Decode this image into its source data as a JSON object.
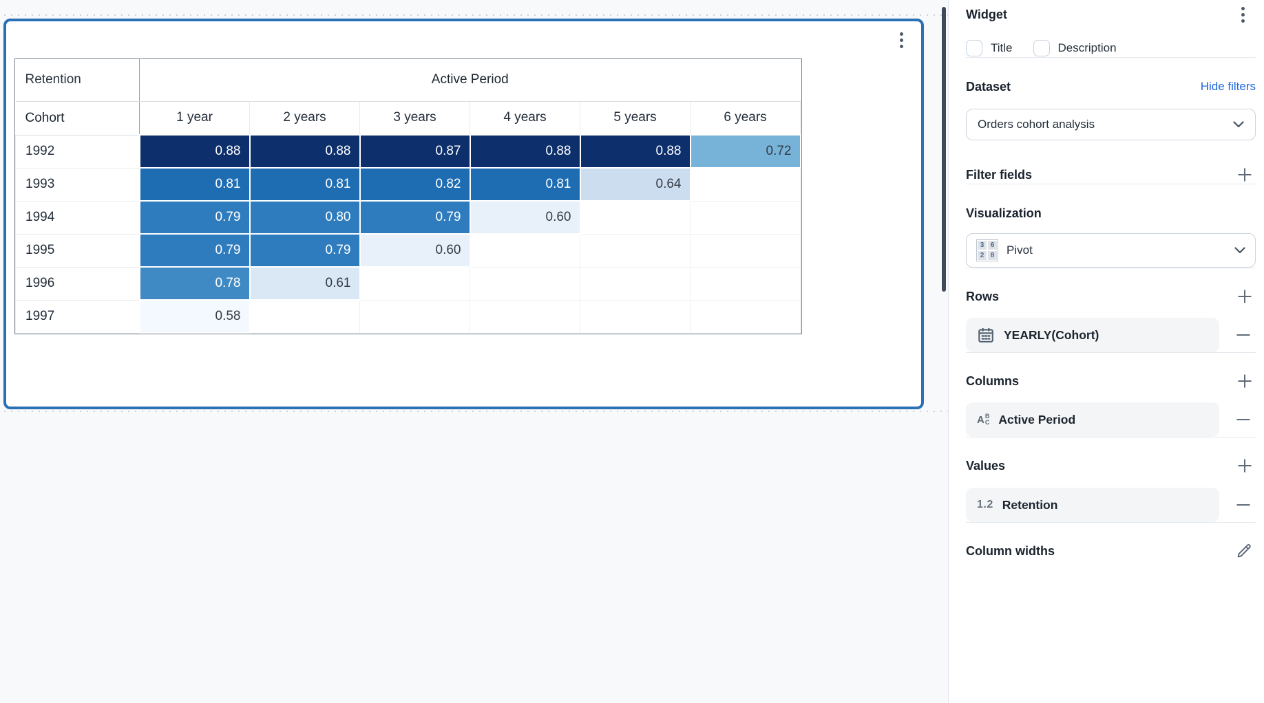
{
  "panel": {
    "widget_heading": "Widget",
    "title_label": "Title",
    "description_label": "Description",
    "dataset_heading": "Dataset",
    "hide_filters_label": "Hide filters",
    "dataset_value": "Orders cohort analysis",
    "filter_fields_heading": "Filter fields",
    "visualization_heading": "Visualization",
    "visualization_value": "Pivot",
    "viz_icon_digits": [
      "3",
      "6",
      "2",
      "8"
    ],
    "rows_heading": "Rows",
    "rows_item_label": "YEARLY(Cohort)",
    "columns_heading": "Columns",
    "columns_item_label": "Active Period",
    "values_heading": "Values",
    "values_item_badge": "1.2",
    "values_item_label": "Retention",
    "column_widths_heading": "Column widths"
  },
  "colors": {
    "selected_card_border": "#2a70b4",
    "link_blue": "#2068e0",
    "panel_scrollbar": "#3f4b5a"
  },
  "chart_data": {
    "type": "heatmap",
    "title": "Retention",
    "x_label": "Active Period",
    "y_label": "Cohort",
    "x_categories": [
      "1 year",
      "2 years",
      "3 years",
      "4 years",
      "5 years",
      "6 years"
    ],
    "y_categories": [
      "1992",
      "1993",
      "1994",
      "1995",
      "1996",
      "1997"
    ],
    "values": [
      [
        0.88,
        0.88,
        0.87,
        0.88,
        0.88,
        0.72
      ],
      [
        0.81,
        0.81,
        0.82,
        0.81,
        0.64,
        null
      ],
      [
        0.79,
        0.8,
        0.79,
        0.6,
        null,
        null
      ],
      [
        0.79,
        0.79,
        0.6,
        null,
        null,
        null
      ],
      [
        0.78,
        0.61,
        null,
        null,
        null,
        null
      ],
      [
        0.58,
        null,
        null,
        null,
        null,
        null
      ]
    ],
    "value_range": [
      0.58,
      0.88
    ],
    "legend": "none",
    "color_scale": [
      {
        "min": 0.85,
        "bg": "#0d2f6b",
        "text": "#ffffff"
      },
      {
        "min": 0.805,
        "bg": "#1e6cb2",
        "text": "#ffffff"
      },
      {
        "min": 0.785,
        "bg": "#2e7cbd",
        "text": "#ffffff"
      },
      {
        "min": 0.75,
        "bg": "#3f8ac4",
        "text": "#ffffff"
      },
      {
        "min": 0.7,
        "bg": "#77b3d8",
        "text": "#333b44"
      },
      {
        "min": 0.63,
        "bg": "#cdddf0",
        "text": "#333b44"
      },
      {
        "min": 0.605,
        "bg": "#dae8f6",
        "text": "#333b44"
      },
      {
        "min": 0.59,
        "bg": "#e8f1fa",
        "text": "#333b44"
      },
      {
        "min": 0.0,
        "bg": "#f3f9fe",
        "text": "#333b44"
      }
    ]
  }
}
